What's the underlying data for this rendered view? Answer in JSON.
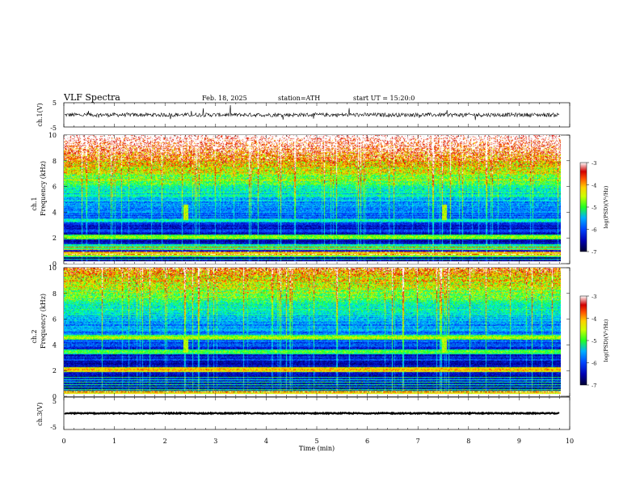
{
  "header": {
    "title": "VLF Spectra",
    "date": "Feb. 18, 2025",
    "station": "station=ATH",
    "start_ut": "start UT =   15:20:0"
  },
  "chart_data": [
    {
      "type": "line",
      "name": "ch1-waveform",
      "ylabel": "ch.1(V)",
      "ylim": [
        -5,
        5
      ],
      "y_ticks": [
        "5",
        "-5"
      ],
      "baseline": 0,
      "amplitude_typical": 0.8
    },
    {
      "type": "heatmap",
      "name": "ch1-spectrogram",
      "ylabel_top": "ch.1",
      "ylabel": "Frequency (kHz)",
      "ylim": [
        0,
        10
      ],
      "y_ticks": [
        "0",
        "2",
        "4",
        "6",
        "8",
        "10"
      ],
      "colorbar": {
        "label": "log(PSD)(V²/Hz)",
        "range": [
          -7,
          -3
        ],
        "ticks": [
          "-3",
          "-4",
          "-5",
          "-6",
          "-7"
        ]
      },
      "bands_khz": [
        {
          "freq": 2.1,
          "level": -4.6
        },
        {
          "freq": 0.8,
          "level": -4.2
        },
        {
          "freq": 3.4,
          "level": -5.3
        },
        {
          "freq": 1.3,
          "level": -5.0
        }
      ],
      "bursts_min": [
        2.4,
        7.5
      ]
    },
    {
      "type": "heatmap",
      "name": "ch2-spectrogram",
      "ylabel_top": "ch.2",
      "ylabel": "Frequency (kHz)",
      "ylim": [
        0,
        10
      ],
      "y_ticks": [
        "0",
        "2",
        "4",
        "6",
        "8",
        "10"
      ],
      "colorbar": {
        "label": "log(PSD)(V²/Hz)",
        "range": [
          -7,
          -3
        ],
        "ticks": [
          "-3",
          "-4",
          "-5",
          "-6",
          "-7"
        ]
      },
      "bands_khz": [
        {
          "freq": 2.1,
          "level": -4.0
        },
        {
          "freq": 4.6,
          "level": -4.5
        },
        {
          "freq": 3.5,
          "level": -4.8
        },
        {
          "freq": 0.3,
          "level": -4.3
        }
      ],
      "bursts_min": [
        2.4,
        7.5
      ]
    },
    {
      "type": "line",
      "name": "ch3-waveform",
      "ylabel": "ch.3(V)",
      "ylim": [
        -5,
        5
      ],
      "y_ticks": [
        "5",
        "-5"
      ],
      "baseline": 0,
      "amplitude_typical": 0.15
    }
  ],
  "x_axis": {
    "label": "Time (min)",
    "range": [
      0,
      10
    ],
    "ticks": [
      "0",
      "1",
      "2",
      "3",
      "4",
      "5",
      "6",
      "7",
      "8",
      "9",
      "10"
    ],
    "data_end": 9.8
  },
  "colormap": [
    "#000033",
    "#0000b0",
    "#0044ff",
    "#00b0ff",
    "#00ffcc",
    "#22ff22",
    "#ccff00",
    "#ffd000",
    "#ff5000",
    "#d00000",
    "#ffffff"
  ]
}
